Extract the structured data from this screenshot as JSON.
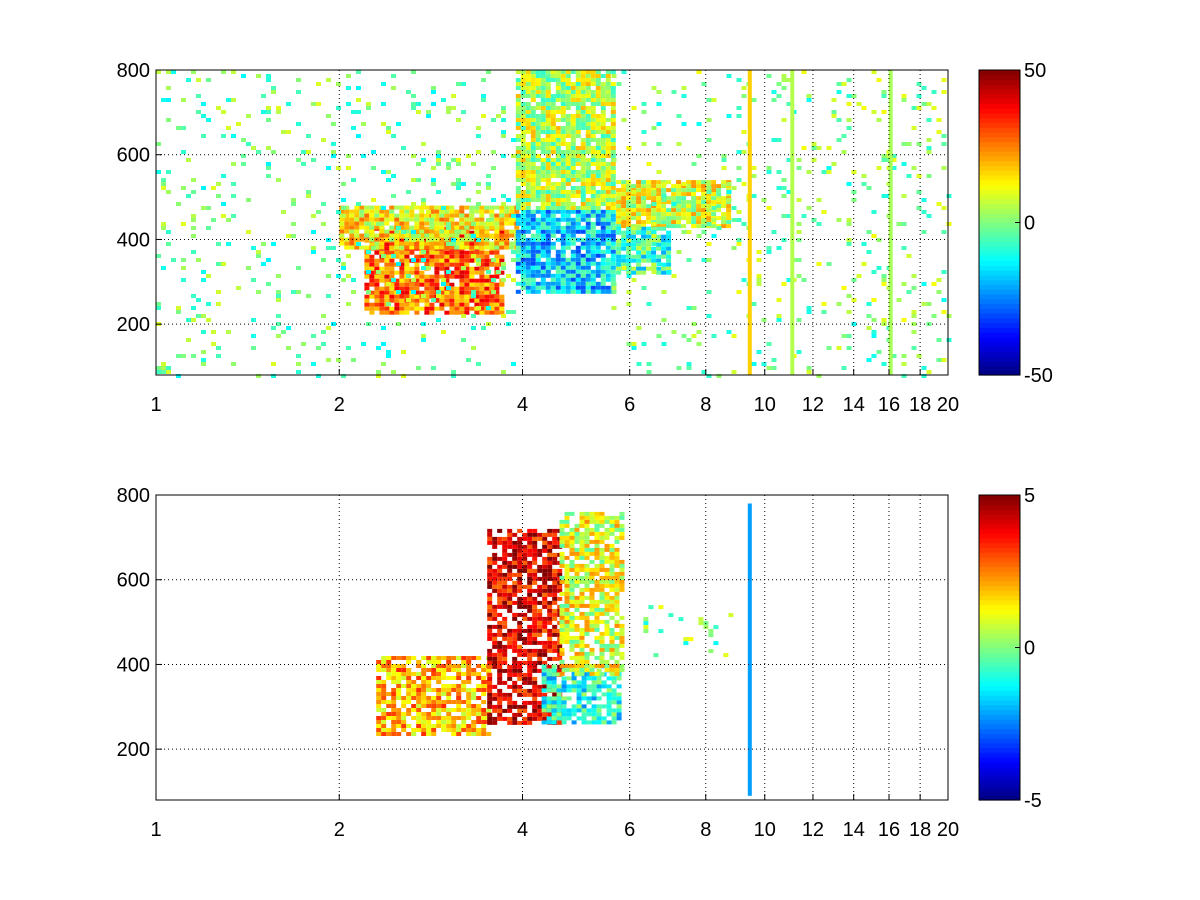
{
  "chart_data": [
    {
      "type": "heatmap",
      "title": "",
      "xlabel": "",
      "ylabel": "",
      "x_scale": "log",
      "xlim": [
        1,
        20
      ],
      "ylim": [
        80,
        800
      ],
      "x_ticks": [
        1,
        2,
        4,
        6,
        8,
        10,
        12,
        14,
        16,
        18,
        20
      ],
      "y_ticks": [
        200,
        400,
        600,
        800
      ],
      "grid": true,
      "colormap": "jet",
      "colorbar": {
        "range": [
          -50,
          50
        ],
        "ticks": [
          -50,
          0,
          50
        ]
      },
      "regions": [
        {
          "x": [
            2.2,
            3.7
          ],
          "y": [
            230,
            430
          ],
          "value": 27
        },
        {
          "x": [
            2.0,
            3.9
          ],
          "y": [
            380,
            480
          ],
          "value": 14
        },
        {
          "x": [
            3.9,
            5.6
          ],
          "y": [
            280,
            470
          ],
          "value": -17
        },
        {
          "x": [
            3.9,
            5.6
          ],
          "y": [
            470,
            800
          ],
          "value": 6
        },
        {
          "x": [
            5.7,
            8.8
          ],
          "y": [
            430,
            540
          ],
          "value": 9
        },
        {
          "x": [
            5.7,
            7.0
          ],
          "y": [
            320,
            430
          ],
          "value": -7
        },
        {
          "x": [
            1.0,
            3.9
          ],
          "y": [
            80,
            800
          ],
          "value": -2
        },
        {
          "x": [
            5.6,
            20.0
          ],
          "y": [
            80,
            800
          ],
          "value": 0
        }
      ],
      "vertical_bands": [
        {
          "x": 9.45,
          "y": [
            80,
            800
          ],
          "value": 17
        },
        {
          "x": 11.1,
          "y": [
            80,
            800
          ],
          "value": 5
        },
        {
          "x": 16.1,
          "y": [
            80,
            800
          ],
          "value": 4
        }
      ]
    },
    {
      "type": "heatmap",
      "title": "",
      "xlabel": "",
      "ylabel": "",
      "x_scale": "log",
      "xlim": [
        1,
        20
      ],
      "ylim": [
        80,
        800
      ],
      "x_ticks": [
        1,
        2,
        4,
        6,
        8,
        10,
        12,
        14,
        16,
        18,
        20
      ],
      "y_ticks": [
        200,
        400,
        600,
        800
      ],
      "grid": true,
      "colormap": "jet",
      "colorbar": {
        "range": [
          -5,
          5
        ],
        "ticks": [
          -5,
          0,
          5
        ]
      },
      "regions": [
        {
          "x": [
            2.3,
            3.5
          ],
          "y": [
            240,
            420
          ],
          "value": 2
        },
        {
          "x": [
            3.5,
            4.6
          ],
          "y": [
            260,
            720
          ],
          "value": 4
        },
        {
          "x": [
            4.3,
            5.8
          ],
          "y": [
            260,
            400
          ],
          "value": -1
        },
        {
          "x": [
            4.6,
            5.8
          ],
          "y": [
            380,
            760
          ],
          "value": 1
        },
        {
          "x": [
            6.2,
            8.8
          ],
          "y": [
            420,
            540
          ],
          "value": 0
        }
      ],
      "vertical_bands": [
        {
          "x": 9.45,
          "y": [
            90,
            780
          ],
          "value": -2.2
        }
      ]
    }
  ]
}
